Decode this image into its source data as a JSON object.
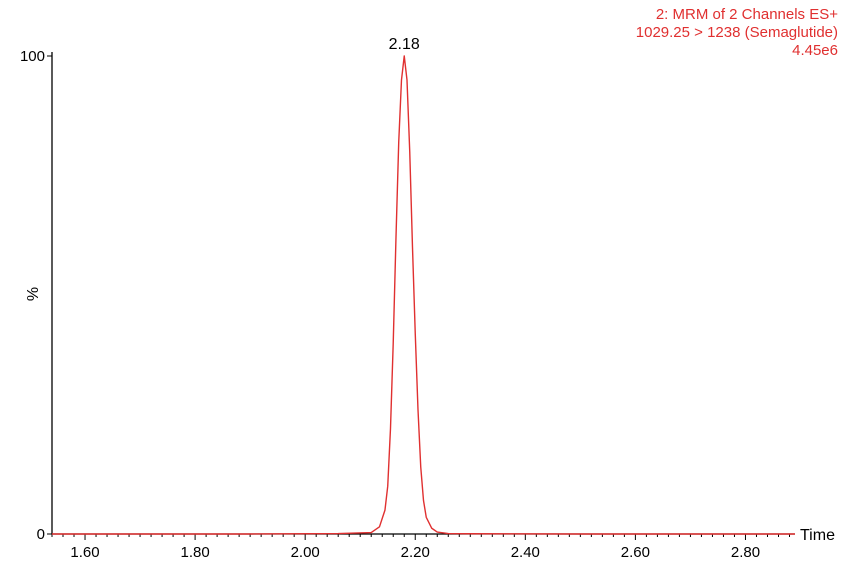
{
  "chart_data": {
    "type": "line",
    "info_lines": [
      "2: MRM of 2 Channels ES+",
      "1029.25 > 1238 (Semaglutide)",
      "4.45e6"
    ],
    "xlabel": "Time",
    "ylabel": "%",
    "xlim": [
      1.54,
      2.89
    ],
    "ylim": [
      0,
      100
    ],
    "x_ticks": [
      "1.60",
      "1.80",
      "2.00",
      "2.20",
      "2.40",
      "2.60",
      "2.80"
    ],
    "y_ticks": [
      "0",
      "100"
    ],
    "peak": {
      "x": 2.18,
      "y": 100,
      "label": "2.18"
    },
    "series": [
      {
        "color": "#e03030",
        "x": [
          1.54,
          1.7,
          1.9,
          2.06,
          2.12,
          2.135,
          2.145,
          2.15,
          2.155,
          2.16,
          2.165,
          2.17,
          2.175,
          2.18,
          2.185,
          2.19,
          2.195,
          2.2,
          2.205,
          2.21,
          2.215,
          2.22,
          2.23,
          2.24,
          2.26,
          2.3,
          2.5,
          2.7,
          2.89
        ],
        "y": [
          0,
          0,
          0,
          0.1,
          0.3,
          1.5,
          5,
          10,
          22,
          40,
          62,
          82,
          95,
          100,
          95,
          80,
          60,
          42,
          26,
          14,
          7,
          3.5,
          1.2,
          0.4,
          0.1,
          0.05,
          0,
          0,
          0
        ]
      }
    ]
  },
  "colors": {
    "axis": "#000000",
    "trace": "#e03030",
    "info_text": "#e03030"
  }
}
